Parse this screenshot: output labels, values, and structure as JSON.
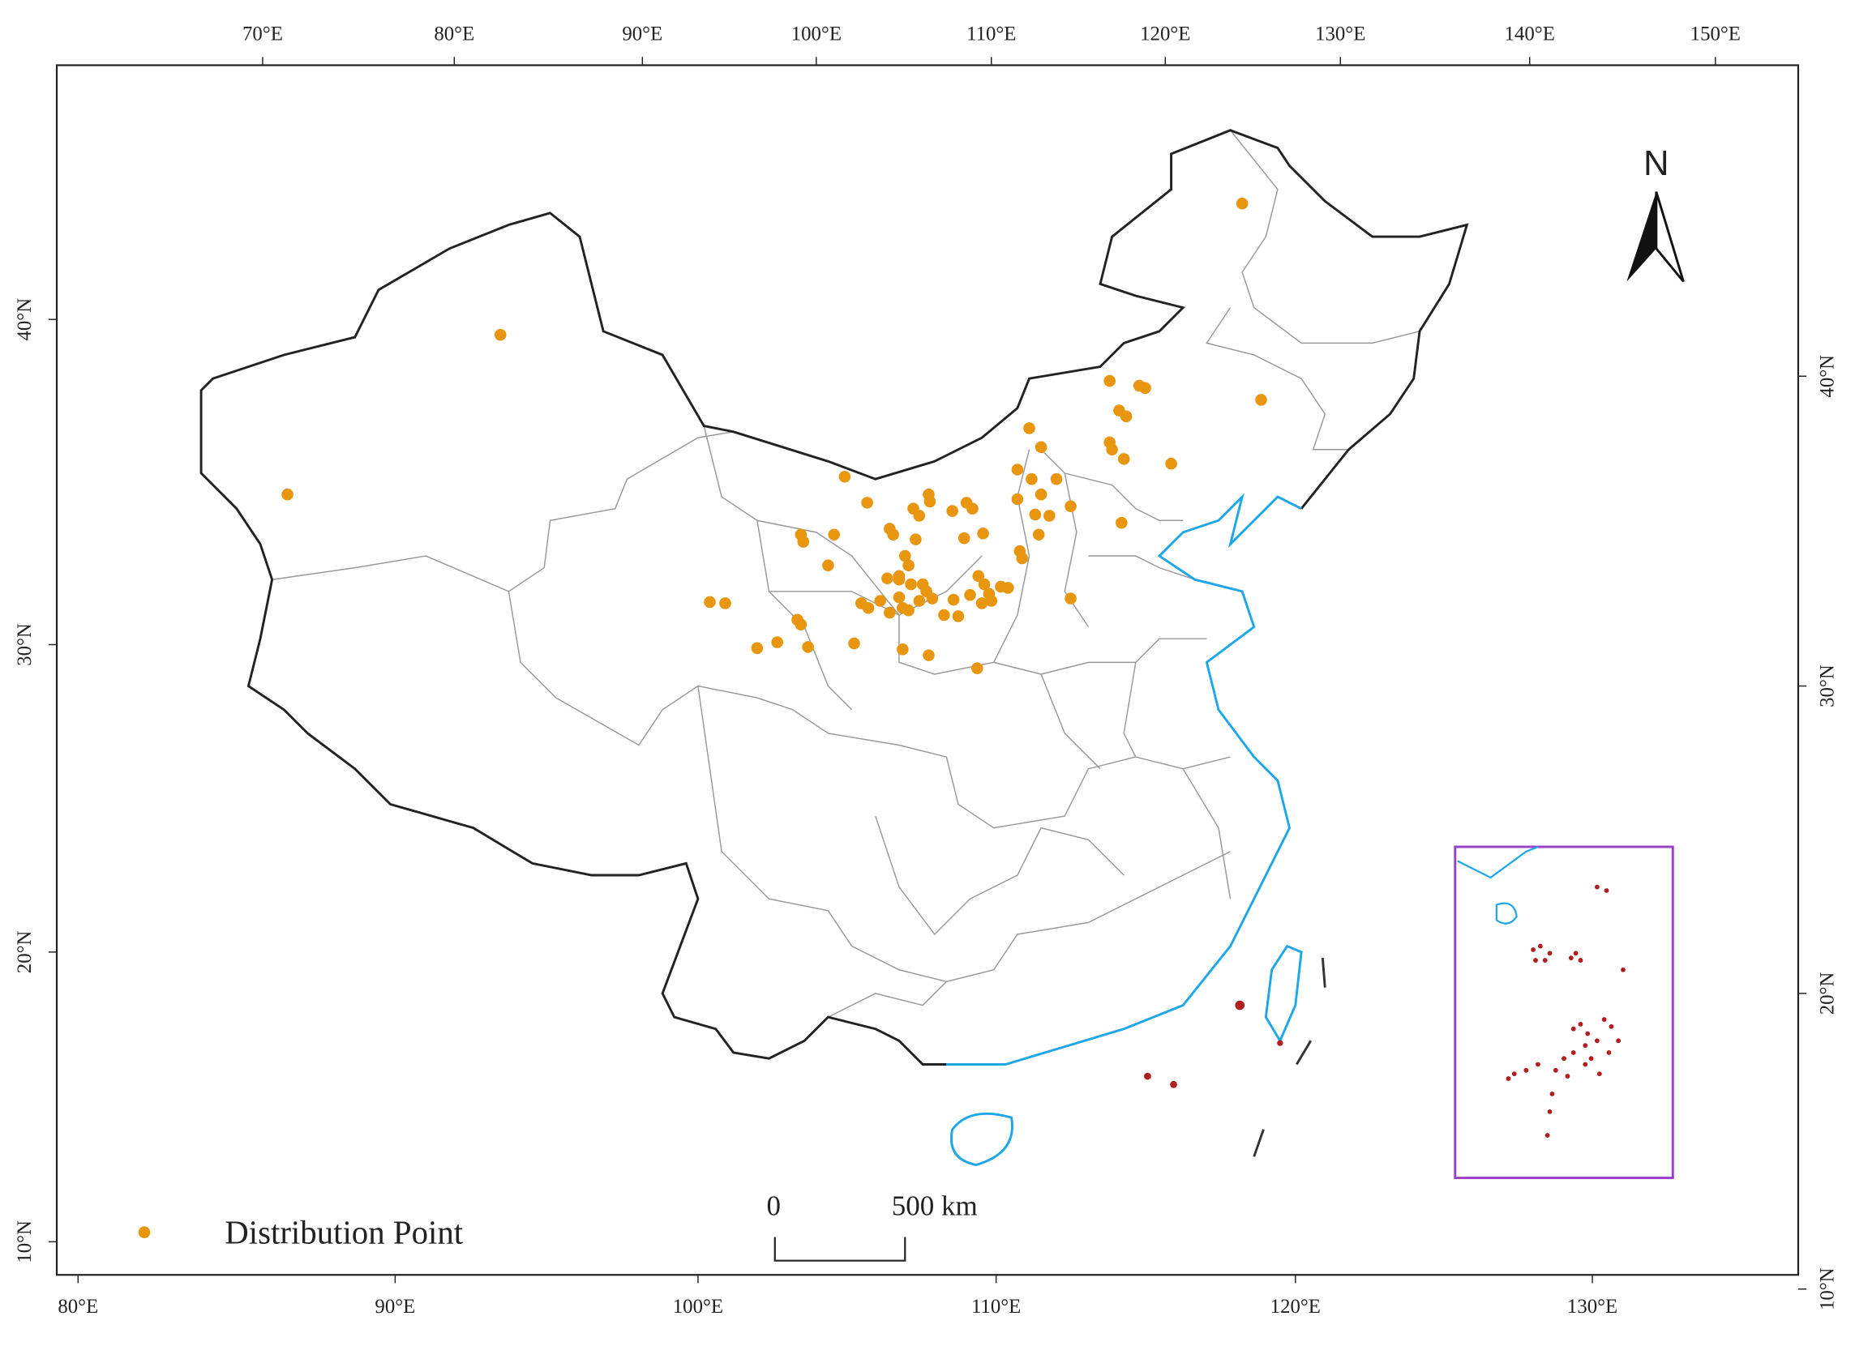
{
  "map": {
    "top_axis": [
      "70°E",
      "80°E",
      "90°E",
      "100°E",
      "110°E",
      "120°E",
      "130°E",
      "140°E",
      "150°E"
    ],
    "bottom_axis": [
      "80°E",
      "90°E",
      "100°E",
      "110°E",
      "120°E",
      "130°E"
    ],
    "left_axis": [
      "40°N",
      "30°N",
      "20°N",
      "10°N"
    ],
    "right_axis": [
      "40°N",
      "30°N",
      "20°N",
      "10°N"
    ],
    "north_label": "N",
    "scale_bar": {
      "start": "0",
      "end": "500 km"
    },
    "legend": {
      "label": "Distribution Point",
      "color": "#e8960f"
    }
  }
}
